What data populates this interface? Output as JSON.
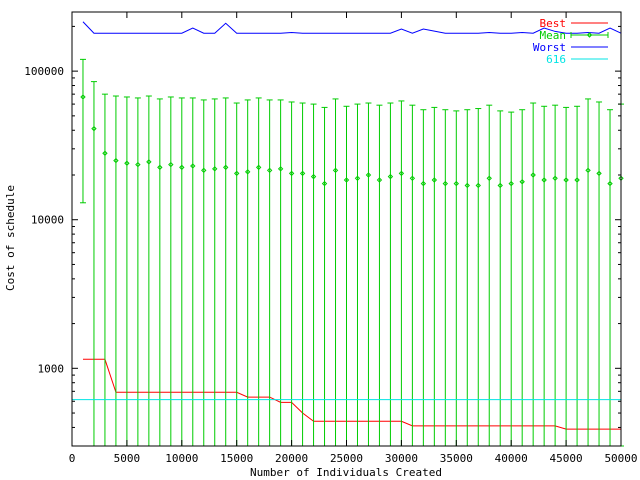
{
  "chart_data": {
    "type": "line",
    "xlabel": "Number of Individuals Created",
    "ylabel": "Cost of schedule",
    "xlim": [
      0,
      50000
    ],
    "ylim": [
      300,
      250000
    ],
    "yscale": "log",
    "grid": false,
    "legend_position": "top-right",
    "x_ticks": [
      0,
      5000,
      10000,
      15000,
      20000,
      25000,
      30000,
      35000,
      40000,
      45000,
      50000
    ],
    "x_tick_labels": [
      "0",
      "5000",
      "10000",
      "15000",
      "20000",
      "25000",
      "30000",
      "35000",
      "40000",
      "45000",
      "50000"
    ],
    "y_ticks": [
      1000,
      10000,
      100000
    ],
    "y_tick_labels": [
      "1000",
      "10000",
      "100000"
    ],
    "x": [
      1000,
      2000,
      3000,
      4000,
      5000,
      6000,
      7000,
      8000,
      9000,
      10000,
      11000,
      12000,
      13000,
      14000,
      15000,
      16000,
      17000,
      18000,
      19000,
      20000,
      21000,
      22000,
      23000,
      24000,
      25000,
      26000,
      27000,
      28000,
      29000,
      30000,
      31000,
      32000,
      33000,
      34000,
      35000,
      36000,
      37000,
      38000,
      39000,
      40000,
      41000,
      42000,
      43000,
      44000,
      45000,
      46000,
      47000,
      48000,
      49000,
      50000
    ],
    "series": [
      {
        "name": "Best",
        "color": "#ff0000",
        "style": "line",
        "values": [
          1150,
          1150,
          1150,
          690,
          690,
          690,
          690,
          690,
          690,
          690,
          690,
          690,
          690,
          690,
          690,
          640,
          640,
          640,
          590,
          590,
          500,
          440,
          440,
          440,
          440,
          440,
          440,
          440,
          440,
          440,
          410,
          410,
          410,
          410,
          410,
          410,
          410,
          410,
          410,
          410,
          410,
          410,
          410,
          410,
          390,
          390,
          390,
          390,
          390,
          390
        ]
      },
      {
        "name": "Mean",
        "color": "#00cc00",
        "style": "errorbars",
        "values": [
          67000,
          41000,
          28000,
          25000,
          24000,
          23500,
          24500,
          22500,
          23500,
          22500,
          23000,
          21500,
          22000,
          22500,
          20500,
          21000,
          22500,
          21500,
          22000,
          20500,
          20500,
          19500,
          17500,
          21500,
          18500,
          19000,
          20000,
          18500,
          19500,
          20500,
          19000,
          17500,
          18500,
          17500,
          17500,
          17000,
          17000,
          19000,
          17000,
          17500,
          18000,
          20000,
          18500,
          19000,
          18500,
          18500,
          21500,
          20500,
          17500,
          19000
        ],
        "upper": [
          120000,
          85000,
          70000,
          68000,
          67000,
          66000,
          68000,
          65000,
          67000,
          66000,
          66000,
          64000,
          65000,
          66000,
          61000,
          64000,
          66000,
          64000,
          64000,
          62000,
          61000,
          60000,
          57000,
          65000,
          58000,
          60000,
          61000,
          59000,
          61000,
          63000,
          59000,
          55000,
          57000,
          55000,
          54000,
          55000,
          56000,
          59000,
          54000,
          53000,
          55000,
          61000,
          58000,
          59000,
          57000,
          58000,
          65000,
          62000,
          55000,
          60000
        ],
        "lower": [
          13000,
          300,
          300,
          300,
          300,
          300,
          300,
          300,
          300,
          300,
          300,
          300,
          300,
          300,
          300,
          300,
          300,
          300,
          300,
          300,
          300,
          300,
          300,
          300,
          300,
          300,
          300,
          300,
          300,
          300,
          300,
          300,
          300,
          300,
          300,
          300,
          300,
          300,
          300,
          300,
          300,
          300,
          300,
          300,
          300,
          300,
          300,
          300,
          300,
          300
        ]
      },
      {
        "name": "Worst",
        "color": "#0000ff",
        "style": "line",
        "values": [
          215000,
          180000,
          180000,
          180000,
          180000,
          180000,
          180000,
          180000,
          180000,
          180000,
          195000,
          180000,
          180000,
          210000,
          180000,
          180000,
          180000,
          180000,
          180000,
          182000,
          180000,
          180000,
          180000,
          180000,
          180000,
          180000,
          180000,
          180000,
          180000,
          192000,
          180000,
          192000,
          186000,
          180000,
          180000,
          180000,
          180000,
          182000,
          180000,
          180000,
          182000,
          180000,
          195000,
          185000,
          180000,
          180000,
          182000,
          180000,
          195000,
          180000
        ]
      },
      {
        "name": "616",
        "color": "#00e5e5",
        "style": "hline",
        "value": 616
      }
    ]
  }
}
